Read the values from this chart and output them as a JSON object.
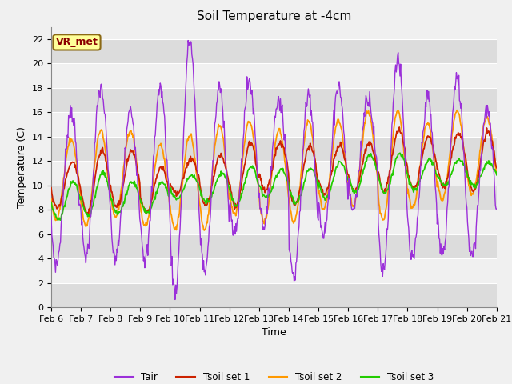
{
  "title": "Soil Temperature at -4cm",
  "xlabel": "Time",
  "ylabel": "Temperature (C)",
  "ylim": [
    0,
    23
  ],
  "yticks": [
    0,
    2,
    4,
    6,
    8,
    10,
    12,
    14,
    16,
    18,
    20,
    22
  ],
  "date_labels": [
    "Feb 6",
    "Feb 7",
    "Feb 8",
    "Feb 9",
    "Feb 10",
    "Feb 11",
    "Feb 12",
    "Feb 13",
    "Feb 14",
    "Feb 15",
    "Feb 16",
    "Feb 17",
    "Feb 18",
    "Feb 19",
    "Feb 20",
    "Feb 21"
  ],
  "line_colors": {
    "Tair": "#9b30d9",
    "Tsoil1": "#cc2200",
    "Tsoil2": "#ff9900",
    "Tsoil3": "#22cc00"
  },
  "legend_labels": [
    "Tair",
    "Tsoil set 1",
    "Tsoil set 2",
    "Tsoil set 3"
  ],
  "annotation_text": "VR_met",
  "bg_light": "#f0f0f0",
  "bg_dark": "#dcdcdc",
  "fig_bg": "#f0f0f0",
  "title_fontsize": 11,
  "axis_fontsize": 9,
  "tick_fontsize": 8
}
